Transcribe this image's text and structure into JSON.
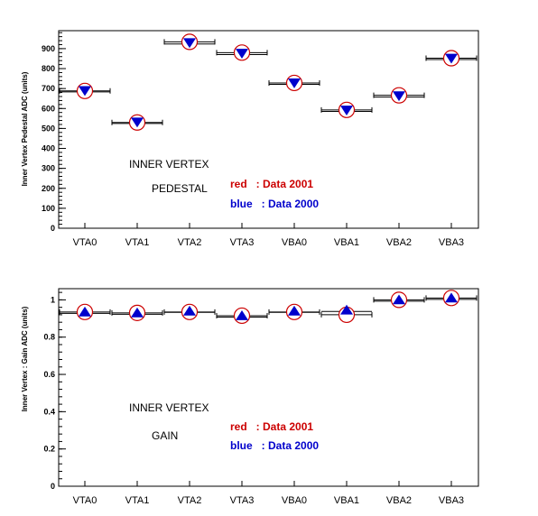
{
  "chart_data": [
    {
      "type": "scatter",
      "categories": [
        "VTA0",
        "VTA1",
        "VTA2",
        "VTA3",
        "VBA0",
        "VBA1",
        "VBA2",
        "VBA3"
      ],
      "ylabel": "Inner Vertex Pedestal ADC (units)",
      "ylim": [
        0,
        990
      ],
      "yticks": [
        0,
        100,
        200,
        300,
        400,
        500,
        600,
        700,
        800,
        900
      ],
      "annotations": [
        "INNER VERTEX",
        "PEDESTAL"
      ],
      "legend": [
        "red   : Data 2001",
        "blue   : Data 2000"
      ],
      "legend_colors": [
        "#cc0000",
        "#0000cc"
      ],
      "marker": "triangle-down",
      "series": [
        {
          "name": "Data 2001",
          "color": "#cc0000",
          "values": [
            688,
            530,
            934,
            880,
            728,
            593,
            666,
            852
          ]
        },
        {
          "name": "Data 2000",
          "color": "#0000cc",
          "values": [
            690,
            532,
            930,
            877,
            728,
            592,
            664,
            852
          ]
        }
      ]
    },
    {
      "type": "scatter",
      "categories": [
        "VTA0",
        "VTA1",
        "VTA2",
        "VTA3",
        "VBA0",
        "VBA1",
        "VBA2",
        "VBA3"
      ],
      "ylabel": "Inner Vertex : Gain ADC (units)",
      "ylim": [
        0,
        1.06
      ],
      "yticks": [
        0,
        0.2,
        0.4,
        0.6,
        0.8,
        1
      ],
      "ytick_labels": [
        "0",
        "0.2",
        "0.4",
        "0.6",
        "0.8",
        "1"
      ],
      "annotations": [
        "INNER VERTEX",
        "GAIN"
      ],
      "legend": [
        "red   : Data 2001",
        "blue   : Data 2000"
      ],
      "legend_colors": [
        "#cc0000",
        "#0000cc"
      ],
      "marker": "triangle-up",
      "series": [
        {
          "name": "Data 2001",
          "color": "#cc0000",
          "values": [
            0.935,
            0.93,
            0.935,
            0.915,
            0.935,
            0.92,
            1.0,
            1.01
          ]
        },
        {
          "name": "Data 2000",
          "color": "#0000cc",
          "values": [
            0.935,
            0.93,
            0.94,
            0.915,
            0.94,
            0.945,
            1.0,
            1.01
          ]
        }
      ]
    }
  ]
}
